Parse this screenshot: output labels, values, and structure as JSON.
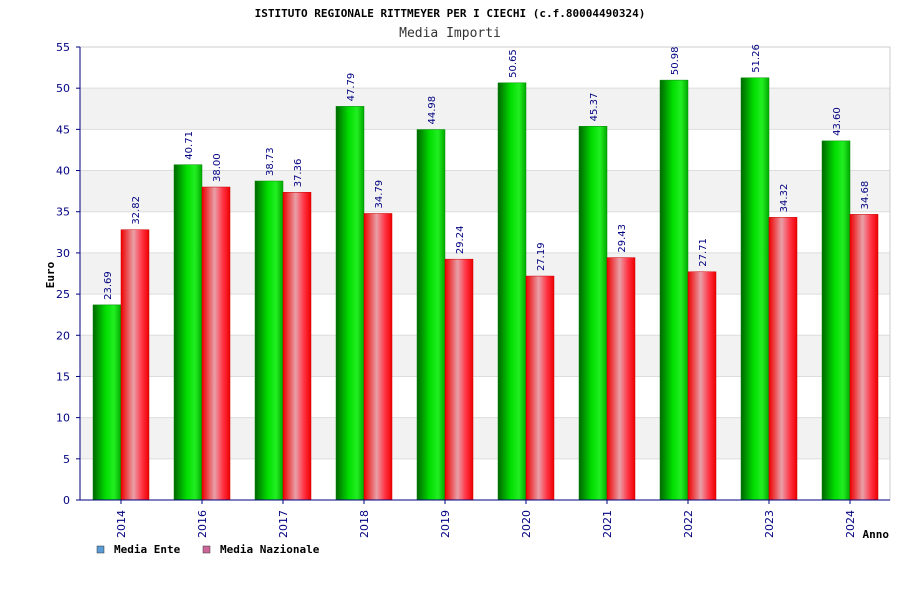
{
  "chart_data": {
    "type": "bar",
    "title": "ISTITUTO REGIONALE RITTMEYER PER I CIECHI (c.f.80004490324)",
    "subtitle": "Media Importi",
    "xlabel": "Anno",
    "ylabel": "Euro",
    "ylim": [
      0,
      55
    ],
    "yticks": [
      0,
      5,
      10,
      15,
      20,
      25,
      30,
      35,
      40,
      45,
      50,
      55
    ],
    "grid": true,
    "legend_position": "bottom-left",
    "categories": [
      "2014",
      "2016",
      "2017",
      "2018",
      "2019",
      "2020",
      "2021",
      "2022",
      "2023",
      "2024"
    ],
    "series": [
      {
        "name": "Media Ente",
        "color": "#00cc00",
        "legend_color": "#5b9bd5",
        "values": [
          23.69,
          40.71,
          38.73,
          47.79,
          44.98,
          50.65,
          45.37,
          50.98,
          51.26,
          43.6
        ],
        "labels": [
          "23.69",
          "40.71",
          "38.73",
          "47.79",
          "44.98",
          "50.65",
          "45.37",
          "50.98",
          "51.26",
          "43.60"
        ]
      },
      {
        "name": "Media Nazionale",
        "color": "#ff0000",
        "legend_color": "#cc6699",
        "values": [
          32.82,
          38.0,
          37.36,
          34.79,
          29.24,
          27.19,
          29.43,
          27.71,
          34.32,
          34.68
        ],
        "labels": [
          "32.82",
          "38.00",
          "37.36",
          "34.79",
          "29.24",
          "27.19",
          "29.43",
          "27.71",
          "34.32",
          "34.68"
        ]
      }
    ]
  }
}
